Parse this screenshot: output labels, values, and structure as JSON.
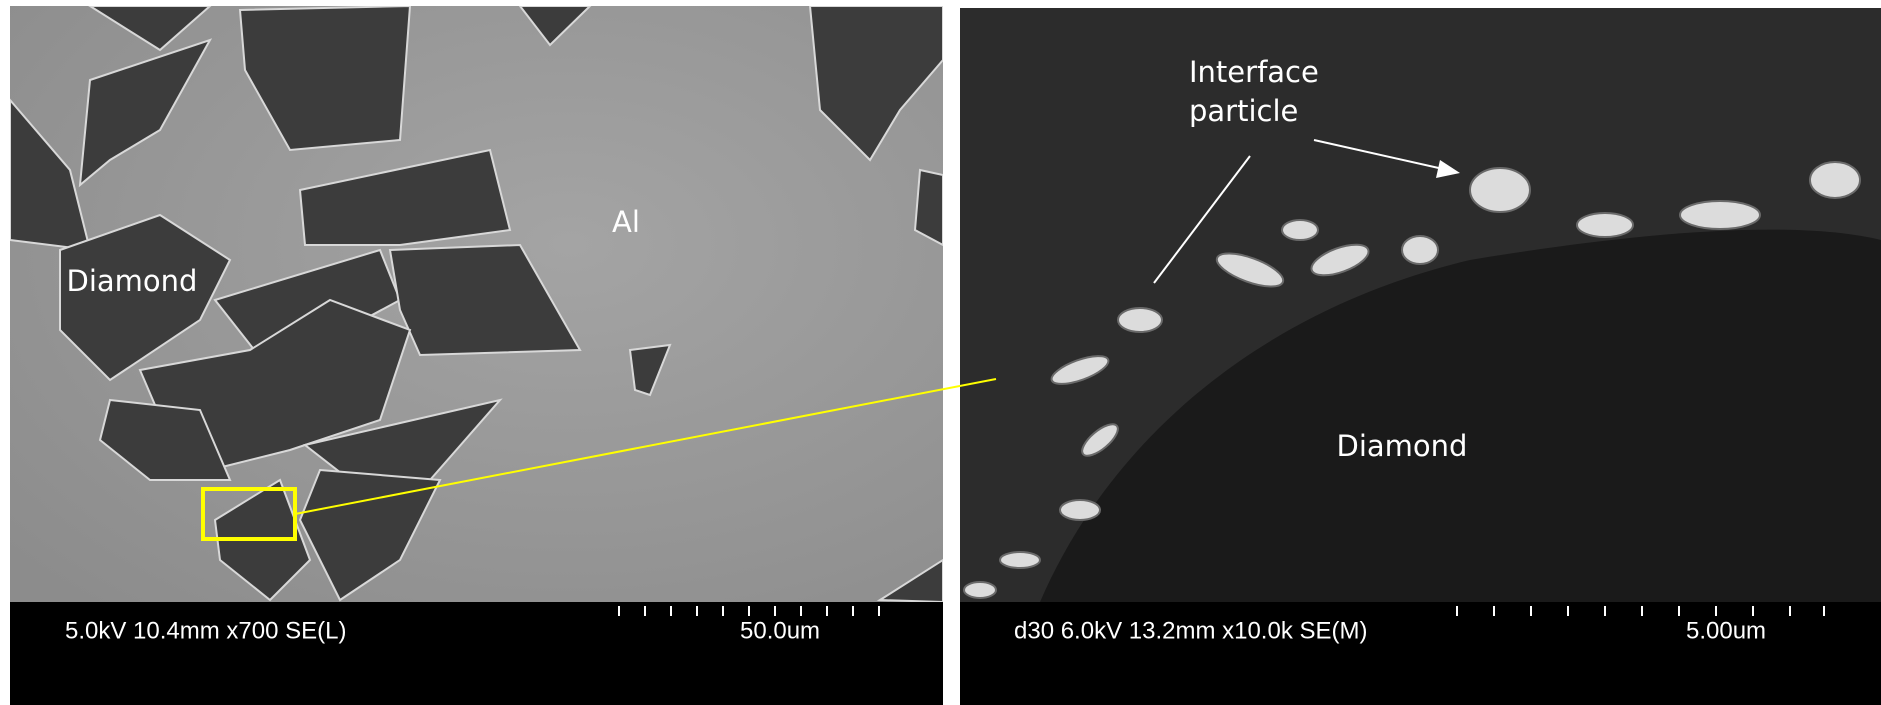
{
  "left_panel": {
    "labels": {
      "diamond": "Diamond",
      "matrix": "Al"
    },
    "info_bar": {
      "parameters": "5.0kV 10.4mm x700 SE(L)",
      "scale": "50.0um"
    }
  },
  "right_panel": {
    "annotation": [
      "Interface",
      "particle"
    ],
    "labels": {
      "diamond": "Diamond"
    },
    "info_bar": {
      "parameters": "d30 6.0kV 13.2mm x10.0k SE(M)",
      "scale": "5.00um"
    }
  }
}
